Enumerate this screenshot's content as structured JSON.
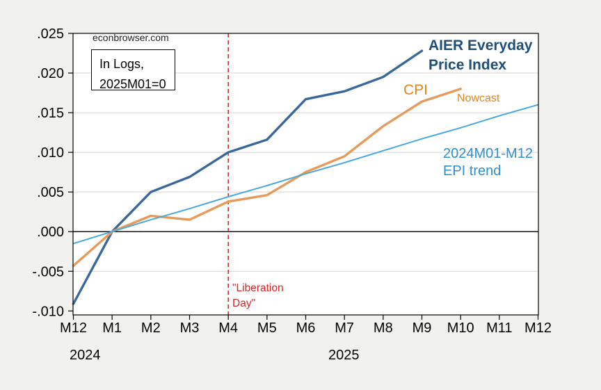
{
  "watermark": "econbrowser.com",
  "note_box": {
    "line1": "In Logs,",
    "line2": "2025M01=0"
  },
  "annotations": {
    "aier_label_line1": "AIER Everyday",
    "aier_label_line2": "Price Index",
    "cpi_label": "CPI",
    "nowcast_label": "Nowcast",
    "trend_label_line1": "2024M01-M12",
    "trend_label_line2": "EPI trend",
    "liberation_line1": "\"Liberation",
    "liberation_line2": "Day\"",
    "year_left": "2024",
    "year_right": "2025"
  },
  "colors": {
    "figure_bg": "#f1f1ef",
    "plot_bg": "#ffffff",
    "axis": "#000000",
    "gridline": "#d4d4d4",
    "aier_line": "#3A689A",
    "cpi_line": "#E89A5C",
    "trend_line": "#4AA8DC",
    "vline_red": "#C11414",
    "aier_text": "#1F4E79",
    "orange_text": "#DF861E",
    "trend_text": "#2E8FD2",
    "red_text": "#E02222"
  },
  "chart_data": {
    "type": "line",
    "title": "",
    "note": "In Logs, 2025M01=0",
    "x_categories": [
      "M12",
      "M1",
      "M2",
      "M3",
      "M4",
      "M5",
      "M6",
      "M7",
      "M8",
      "M9",
      "M10",
      "M11",
      "M12"
    ],
    "x_year_groups": [
      "2024",
      "2025"
    ],
    "y_tick_labels": [
      ".025",
      ".020",
      ".015",
      ".010",
      ".005",
      ".000",
      "-.005",
      "-.010"
    ],
    "y_tick_values": [
      0.025,
      0.02,
      0.015,
      0.01,
      0.005,
      0.0,
      -0.005,
      -0.01
    ],
    "ylim": [
      -0.0105,
      0.025
    ],
    "grid": "horizontal",
    "zero_line": true,
    "legend_position": "inline-annotations",
    "series": [
      {
        "name": "AIER Everyday Price Index",
        "color": "#3A689A",
        "stroke_width": 3.4,
        "values": [
          -0.0091,
          0.0,
          0.005,
          0.0069,
          0.01,
          0.0116,
          0.0167,
          0.0177,
          0.0195,
          0.0228
        ]
      },
      {
        "name": "CPI (incl. Nowcast)",
        "color": "#E89A5C",
        "stroke_width": 3.4,
        "values": [
          -0.0043,
          0.0,
          0.002,
          0.0015,
          0.0038,
          0.0046,
          0.0075,
          0.0095,
          0.0133,
          0.0164,
          0.018
        ]
      },
      {
        "name": "2024M01-M12 EPI trend",
        "color": "#4AA8DC",
        "stroke_width": 2,
        "values": [
          -0.0015,
          0.0,
          0.0015,
          0.0029,
          0.0044,
          0.0058,
          0.0073,
          0.0087,
          0.0102,
          0.0117,
          0.0131,
          0.0146,
          0.016
        ]
      }
    ],
    "vline": {
      "x_category": "M4",
      "x_index": 4,
      "style": "dashed",
      "color": "#C11414",
      "label": "\"Liberation Day\""
    }
  }
}
